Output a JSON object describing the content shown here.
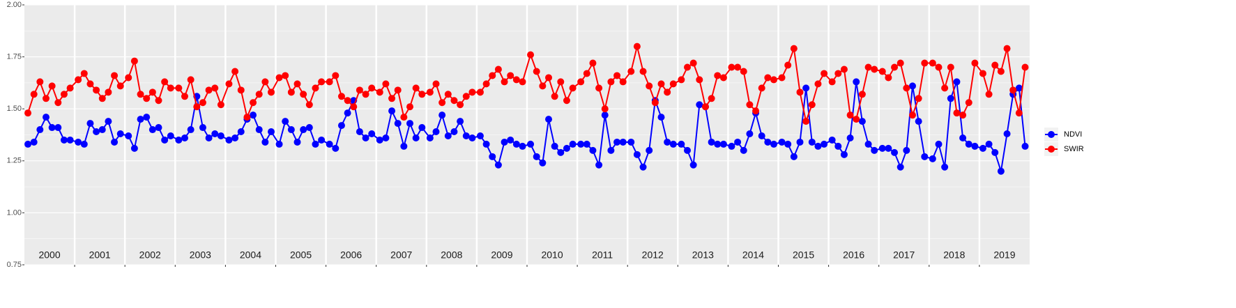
{
  "chart_data": {
    "type": "line",
    "panels": [
      "2000",
      "2001",
      "2002",
      "2003",
      "2004",
      "2005",
      "2006",
      "2007",
      "2008",
      "2009",
      "2010",
      "2011",
      "2012",
      "2013",
      "2014",
      "2015",
      "2016",
      "2017",
      "2018",
      "2019"
    ],
    "x": [
      2000.07,
      2000.19,
      2000.31,
      2000.43,
      2000.55,
      2000.67,
      2000.79,
      2000.91,
      2001.07,
      2001.19,
      2001.31,
      2001.43,
      2001.55,
      2001.67,
      2001.79,
      2001.91,
      2002.07,
      2002.19,
      2002.31,
      2002.43,
      2002.55,
      2002.67,
      2002.79,
      2002.91,
      2003.07,
      2003.19,
      2003.31,
      2003.43,
      2003.55,
      2003.67,
      2003.79,
      2003.91,
      2004.07,
      2004.19,
      2004.31,
      2004.43,
      2004.55,
      2004.67,
      2004.79,
      2004.91,
      2005.07,
      2005.19,
      2005.31,
      2005.43,
      2005.55,
      2005.67,
      2005.79,
      2005.91,
      2006.07,
      2006.19,
      2006.31,
      2006.43,
      2006.55,
      2006.67,
      2006.79,
      2006.91,
      2007.07,
      2007.19,
      2007.31,
      2007.43,
      2007.55,
      2007.67,
      2007.79,
      2007.91,
      2008.07,
      2008.19,
      2008.31,
      2008.43,
      2008.55,
      2008.67,
      2008.79,
      2008.91,
      2009.07,
      2009.19,
      2009.31,
      2009.43,
      2009.55,
      2009.67,
      2009.79,
      2009.91,
      2010.07,
      2010.19,
      2010.31,
      2010.43,
      2010.55,
      2010.67,
      2010.79,
      2010.91,
      2011.07,
      2011.19,
      2011.31,
      2011.43,
      2011.55,
      2011.67,
      2011.79,
      2011.91,
      2012.07,
      2012.19,
      2012.31,
      2012.43,
      2012.55,
      2012.67,
      2012.79,
      2012.91,
      2013.07,
      2013.19,
      2013.31,
      2013.43,
      2013.55,
      2013.67,
      2013.79,
      2013.91,
      2014.07,
      2014.19,
      2014.31,
      2014.43,
      2014.55,
      2014.67,
      2014.79,
      2014.91,
      2015.07,
      2015.19,
      2015.31,
      2015.43,
      2015.55,
      2015.67,
      2015.79,
      2015.91,
      2016.07,
      2016.19,
      2016.31,
      2016.43,
      2016.55,
      2016.67,
      2016.79,
      2016.91,
      2017.07,
      2017.19,
      2017.31,
      2017.43,
      2017.55,
      2017.67,
      2017.79,
      2017.91,
      2018.07,
      2018.19,
      2018.31,
      2018.43,
      2018.55,
      2018.67,
      2018.79,
      2018.91,
      2019.07,
      2019.19,
      2019.31,
      2019.43,
      2019.55,
      2019.67,
      2019.79,
      2019.91
    ],
    "series": [
      {
        "name": "NDVI",
        "color": "#0000ff",
        "values": [
          1.33,
          1.34,
          1.4,
          1.46,
          1.41,
          1.41,
          1.35,
          1.35,
          1.34,
          1.33,
          1.43,
          1.39,
          1.4,
          1.44,
          1.34,
          1.38,
          1.37,
          1.31,
          1.45,
          1.46,
          1.4,
          1.41,
          1.35,
          1.37,
          1.35,
          1.36,
          1.4,
          1.56,
          1.41,
          1.36,
          1.38,
          1.37,
          1.35,
          1.36,
          1.39,
          1.45,
          1.47,
          1.4,
          1.34,
          1.39,
          1.33,
          1.44,
          1.4,
          1.34,
          1.4,
          1.41,
          1.33,
          1.35,
          1.33,
          1.31,
          1.42,
          1.48,
          1.54,
          1.39,
          1.36,
          1.38,
          1.35,
          1.36,
          1.49,
          1.43,
          1.32,
          1.43,
          1.36,
          1.41,
          1.36,
          1.39,
          1.47,
          1.37,
          1.39,
          1.44,
          1.37,
          1.36,
          1.37,
          1.33,
          1.27,
          1.23,
          1.34,
          1.35,
          1.33,
          1.32,
          1.33,
          1.27,
          1.24,
          1.45,
          1.32,
          1.29,
          1.31,
          1.33,
          1.33,
          1.33,
          1.3,
          1.23,
          1.47,
          1.3,
          1.34,
          1.34,
          1.34,
          1.28,
          1.22,
          1.3,
          1.54,
          1.46,
          1.34,
          1.33,
          1.33,
          1.3,
          1.23,
          1.52,
          1.51,
          1.34,
          1.33,
          1.33,
          1.32,
          1.34,
          1.3,
          1.38,
          1.48,
          1.37,
          1.34,
          1.33,
          1.34,
          1.33,
          1.27,
          1.34,
          1.6,
          1.34,
          1.32,
          1.33,
          1.35,
          1.32,
          1.28,
          1.36,
          1.63,
          1.44,
          1.33,
          1.3,
          1.31,
          1.31,
          1.29,
          1.22,
          1.3,
          1.61,
          1.44,
          1.27,
          1.26,
          1.33,
          1.22,
          1.55,
          1.63,
          1.36,
          1.33,
          1.32,
          1.31,
          1.33,
          1.29,
          1.2,
          1.38,
          1.57,
          1.6,
          1.32
        ]
      },
      {
        "name": "SWIR",
        "color": "#ff0000",
        "values": [
          1.48,
          1.57,
          1.63,
          1.55,
          1.61,
          1.53,
          1.57,
          1.6,
          1.64,
          1.67,
          1.62,
          1.59,
          1.55,
          1.58,
          1.66,
          1.61,
          1.65,
          1.73,
          1.57,
          1.55,
          1.58,
          1.54,
          1.63,
          1.6,
          1.6,
          1.56,
          1.64,
          1.51,
          1.53,
          1.59,
          1.6,
          1.52,
          1.62,
          1.68,
          1.59,
          1.46,
          1.53,
          1.57,
          1.63,
          1.58,
          1.65,
          1.66,
          1.58,
          1.62,
          1.57,
          1.52,
          1.6,
          1.63,
          1.63,
          1.66,
          1.56,
          1.54,
          1.51,
          1.59,
          1.57,
          1.6,
          1.58,
          1.62,
          1.55,
          1.59,
          1.46,
          1.51,
          1.6,
          1.57,
          1.58,
          1.62,
          1.53,
          1.57,
          1.54,
          1.52,
          1.56,
          1.58,
          1.58,
          1.62,
          1.66,
          1.69,
          1.63,
          1.66,
          1.64,
          1.63,
          1.76,
          1.68,
          1.61,
          1.65,
          1.56,
          1.63,
          1.54,
          1.6,
          1.63,
          1.67,
          1.72,
          1.6,
          1.5,
          1.63,
          1.66,
          1.63,
          1.68,
          1.8,
          1.68,
          1.61,
          1.53,
          1.62,
          1.58,
          1.62,
          1.64,
          1.7,
          1.72,
          1.64,
          1.51,
          1.55,
          1.66,
          1.65,
          1.7,
          1.7,
          1.68,
          1.52,
          1.49,
          1.6,
          1.65,
          1.64,
          1.65,
          1.71,
          1.79,
          1.58,
          1.44,
          1.52,
          1.62,
          1.67,
          1.63,
          1.67,
          1.69,
          1.47,
          1.45,
          1.57,
          1.7,
          1.69,
          1.68,
          1.65,
          1.7,
          1.72,
          1.6,
          1.47,
          1.55,
          1.72,
          1.72,
          1.7,
          1.6,
          1.7,
          1.48,
          1.47,
          1.53,
          1.72,
          1.67,
          1.57,
          1.71,
          1.68,
          1.79,
          1.59,
          1.48,
          1.7
        ]
      }
    ],
    "xlim": [
      2000,
      2020
    ],
    "ylim": [
      0.75,
      2
    ],
    "yticks": [
      0.75,
      {
        "value": 1,
        "label": "1.00"
      },
      1.25,
      {
        "value": 1.5,
        "label": "1.50"
      },
      1.75,
      {
        "value": 2,
        "label": "2.00"
      }
    ],
    "grid": true,
    "legend": "right"
  }
}
